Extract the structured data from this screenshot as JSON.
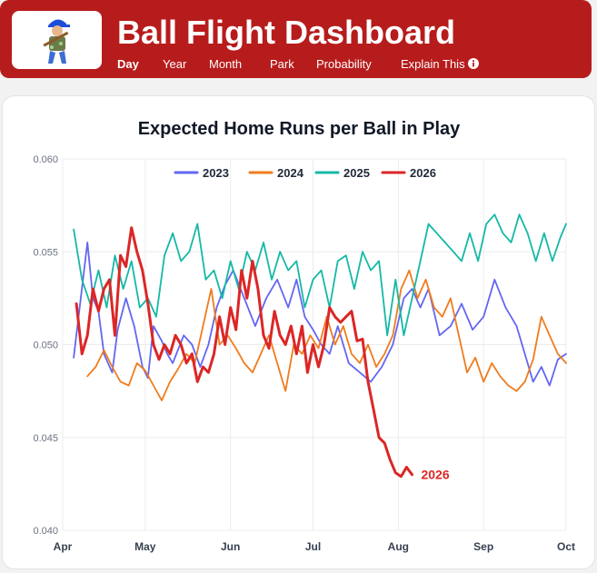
{
  "app": {
    "title": "Ball Flight Dashboard",
    "nav": [
      {
        "label": "Day",
        "active": true
      },
      {
        "label": "Year",
        "active": false
      },
      {
        "label": "Month",
        "active": false
      },
      {
        "label": "Park",
        "active": false
      },
      {
        "label": "Probability",
        "active": false
      },
      {
        "label": "Explain This",
        "active": false,
        "icon": "info-icon"
      }
    ],
    "logo_icon": "baseball-player-logo-icon",
    "colors": {
      "header": "#b71c1c",
      "text_on_header": "#ffffff"
    }
  },
  "chart_data": {
    "type": "line",
    "title": "Expected Home Runs per Ball in Play",
    "xlabel": "",
    "ylabel": "",
    "ylim": [
      0.04,
      0.06
    ],
    "yticks": [
      "0.040",
      "0.045",
      "0.050",
      "0.055",
      "0.060"
    ],
    "xlim": [
      "Apr 1",
      "Oct 1"
    ],
    "xticks": [
      {
        "label": "Apr",
        "day": 0
      },
      {
        "label": "May",
        "day": 30
      },
      {
        "label": "Jun",
        "day": 61
      },
      {
        "label": "Jul",
        "day": 91
      },
      {
        "label": "Aug",
        "day": 122
      },
      {
        "label": "Sep",
        "day": 153
      },
      {
        "label": "Oct",
        "day": 183
      }
    ],
    "grid": true,
    "legend": "top-center",
    "end_label": {
      "series": "2026",
      "text": "2026"
    },
    "series": [
      {
        "name": "2023",
        "color": "#6366f1",
        "width": 1.8,
        "x_dates": [
          "Apr 5",
          "Apr 10",
          "Apr 12",
          "Apr 14",
          "Apr 16",
          "Apr 19",
          "Apr 21",
          "Apr 24",
          "Apr 27",
          "Apr 30",
          "May 2",
          "May 4",
          "May 7",
          "May 9",
          "May 11",
          "May 15",
          "May 18",
          "May 21",
          "May 24",
          "May 27",
          "May 30",
          "Jun 2",
          "Jun 6",
          "Jun 10",
          "Jun 14",
          "Jun 18",
          "Jun 22",
          "Jun 25",
          "Jun 28",
          "Jul 1",
          "Jul 4",
          "Jul 7",
          "Jul 10",
          "Jul 14",
          "Jul 18",
          "Jul 22",
          "Jul 26",
          "Jul 30",
          "Aug 3",
          "Aug 6",
          "Aug 9",
          "Aug 12",
          "Aug 16",
          "Aug 20",
          "Aug 24",
          "Aug 28",
          "Sep 1",
          "Sep 5",
          "Sep 9",
          "Sep 13",
          "Sep 16",
          "Sep 19",
          "Sep 22",
          "Sep 25",
          "Sep 28",
          "Oct 1"
        ],
        "values": [
          0.0493,
          0.0555,
          0.0525,
          0.0518,
          0.0495,
          0.0485,
          0.0508,
          0.0525,
          0.051,
          0.0488,
          0.0482,
          0.051,
          0.0502,
          0.0495,
          0.049,
          0.0505,
          0.05,
          0.0488,
          0.05,
          0.052,
          0.0532,
          0.054,
          0.0525,
          0.051,
          0.0525,
          0.0535,
          0.052,
          0.0535,
          0.0515,
          0.0508,
          0.05,
          0.0495,
          0.051,
          0.049,
          0.0485,
          0.048,
          0.0488,
          0.05,
          0.0525,
          0.053,
          0.052,
          0.053,
          0.0505,
          0.051,
          0.0522,
          0.0508,
          0.0515,
          0.0535,
          0.052,
          0.051,
          0.0495,
          0.048,
          0.0488,
          0.0478,
          0.0492,
          0.0495
        ]
      },
      {
        "name": "2024",
        "color": "#f07b1d",
        "width": 1.8,
        "x_dates": [
          "Apr 10",
          "Apr 13",
          "Apr 16",
          "Apr 19",
          "Apr 22",
          "Apr 25",
          "Apr 28",
          "May 1",
          "May 4",
          "May 7",
          "May 10",
          "May 13",
          "May 16",
          "May 19",
          "May 22",
          "May 25",
          "May 28",
          "May 31",
          "Jun 3",
          "Jun 6",
          "Jun 9",
          "Jun 12",
          "Jun 15",
          "Jun 18",
          "Jun 21",
          "Jun 24",
          "Jun 27",
          "Jun 30",
          "Jul 3",
          "Jul 6",
          "Jul 9",
          "Jul 12",
          "Jul 15",
          "Jul 18",
          "Jul 21",
          "Jul 24",
          "Jul 27",
          "Jul 30",
          "Aug 2",
          "Aug 5",
          "Aug 8",
          "Aug 11",
          "Aug 14",
          "Aug 17",
          "Aug 20",
          "Aug 23",
          "Aug 26",
          "Aug 29",
          "Sep 1",
          "Sep 4",
          "Sep 7",
          "Sep 10",
          "Sep 13",
          "Sep 16",
          "Sep 19",
          "Sep 22",
          "Sep 25",
          "Sep 28",
          "Oct 1"
        ],
        "values": [
          0.0483,
          0.0488,
          0.0497,
          0.0488,
          0.048,
          0.0478,
          0.049,
          0.0486,
          0.0478,
          0.047,
          0.048,
          0.0487,
          0.0495,
          0.049,
          0.051,
          0.053,
          0.05,
          0.0505,
          0.0498,
          0.049,
          0.0485,
          0.0495,
          0.0505,
          0.049,
          0.0475,
          0.05,
          0.0495,
          0.0505,
          0.0498,
          0.0515,
          0.05,
          0.051,
          0.0495,
          0.049,
          0.05,
          0.0488,
          0.0495,
          0.0505,
          0.053,
          0.054,
          0.0525,
          0.0535,
          0.052,
          0.0515,
          0.0525,
          0.0505,
          0.0485,
          0.0493,
          0.048,
          0.049,
          0.0483,
          0.0478,
          0.0475,
          0.048,
          0.0492,
          0.0515,
          0.0505,
          0.0495,
          0.049
        ]
      },
      {
        "name": "2025",
        "color": "#14b8a6",
        "width": 1.8,
        "x_dates": [
          "Apr 5",
          "Apr 8",
          "Apr 11",
          "Apr 14",
          "Apr 17",
          "Apr 20",
          "Apr 23",
          "Apr 26",
          "Apr 29",
          "May 2",
          "May 5",
          "May 8",
          "May 11",
          "May 14",
          "May 17",
          "May 20",
          "May 23",
          "May 26",
          "May 29",
          "Jun 1",
          "Jun 4",
          "Jun 7",
          "Jun 10",
          "Jun 13",
          "Jun 16",
          "Jun 19",
          "Jun 22",
          "Jun 25",
          "Jun 28",
          "Jul 1",
          "Jul 4",
          "Jul 7",
          "Jul 10",
          "Jul 13",
          "Jul 16",
          "Jul 19",
          "Jul 22",
          "Jul 25",
          "Jul 28",
          "Jul 31",
          "Aug 3",
          "Aug 6",
          "Aug 9",
          "Aug 12",
          "Aug 15",
          "Aug 18",
          "Aug 21",
          "Aug 24",
          "Aug 27",
          "Aug 30",
          "Sep 2",
          "Sep 5",
          "Sep 8",
          "Sep 11",
          "Sep 14",
          "Sep 17",
          "Sep 20",
          "Sep 23",
          "Sep 26",
          "Sep 29",
          "Oct 1"
        ],
        "values": [
          0.0562,
          0.0535,
          0.0522,
          0.054,
          0.052,
          0.0548,
          0.053,
          0.0545,
          0.052,
          0.0525,
          0.0515,
          0.0548,
          0.056,
          0.0545,
          0.055,
          0.0565,
          0.0535,
          0.054,
          0.0525,
          0.0545,
          0.053,
          0.055,
          0.054,
          0.0555,
          0.0535,
          0.055,
          0.054,
          0.0545,
          0.052,
          0.0535,
          0.054,
          0.052,
          0.0545,
          0.0548,
          0.053,
          0.055,
          0.054,
          0.0545,
          0.0505,
          0.0535,
          0.0505,
          0.0525,
          0.0545,
          0.0565,
          0.056,
          0.0555,
          0.055,
          0.0545,
          0.056,
          0.0545,
          0.0565,
          0.057,
          0.056,
          0.0555,
          0.057,
          0.056,
          0.0545,
          0.056,
          0.0545,
          0.0558,
          0.0565
        ]
      },
      {
        "name": "2026",
        "color": "#dc2626",
        "width": 3,
        "x_dates": [
          "Apr 6",
          "Apr 8",
          "Apr 10",
          "Apr 12",
          "Apr 14",
          "Apr 16",
          "Apr 18",
          "Apr 20",
          "Apr 22",
          "Apr 24",
          "Apr 26",
          "Apr 28",
          "Apr 30",
          "May 2",
          "May 4",
          "May 6",
          "May 8",
          "May 10",
          "May 12",
          "May 14",
          "May 16",
          "May 18",
          "May 20",
          "May 22",
          "May 24",
          "May 26",
          "May 28",
          "May 30",
          "Jun 1",
          "Jun 3",
          "Jun 5",
          "Jun 7",
          "Jun 9",
          "Jun 11",
          "Jun 13",
          "Jun 15",
          "Jun 17",
          "Jun 19",
          "Jun 21",
          "Jun 23",
          "Jun 25",
          "Jun 27",
          "Jun 29",
          "Jul 1",
          "Jul 3",
          "Jul 5",
          "Jul 7",
          "Jul 9",
          "Jul 11",
          "Jul 13",
          "Jul 15",
          "Jul 17",
          "Jul 19",
          "Jul 21",
          "Jul 23",
          "Jul 25",
          "Jul 27",
          "Jul 29",
          "Jul 31",
          "Aug 2",
          "Aug 4",
          "Aug 6"
        ],
        "values": [
          0.0522,
          0.0495,
          0.0505,
          0.053,
          0.0518,
          0.053,
          0.0535,
          0.0505,
          0.0548,
          0.0542,
          0.0563,
          0.055,
          0.054,
          0.0522,
          0.05,
          0.0492,
          0.05,
          0.0495,
          0.0505,
          0.05,
          0.049,
          0.0495,
          0.048,
          0.0488,
          0.0485,
          0.0495,
          0.0515,
          0.05,
          0.052,
          0.0508,
          0.054,
          0.0525,
          0.0545,
          0.053,
          0.0505,
          0.0498,
          0.0518,
          0.0505,
          0.05,
          0.051,
          0.0495,
          0.051,
          0.0485,
          0.05,
          0.0488,
          0.05,
          0.052,
          0.0515,
          0.0512,
          0.0515,
          0.0518,
          0.0502,
          0.0503,
          0.048,
          0.0465,
          0.045,
          0.0447,
          0.0438,
          0.0431,
          0.0429,
          0.0434,
          0.043
        ]
      }
    ]
  }
}
